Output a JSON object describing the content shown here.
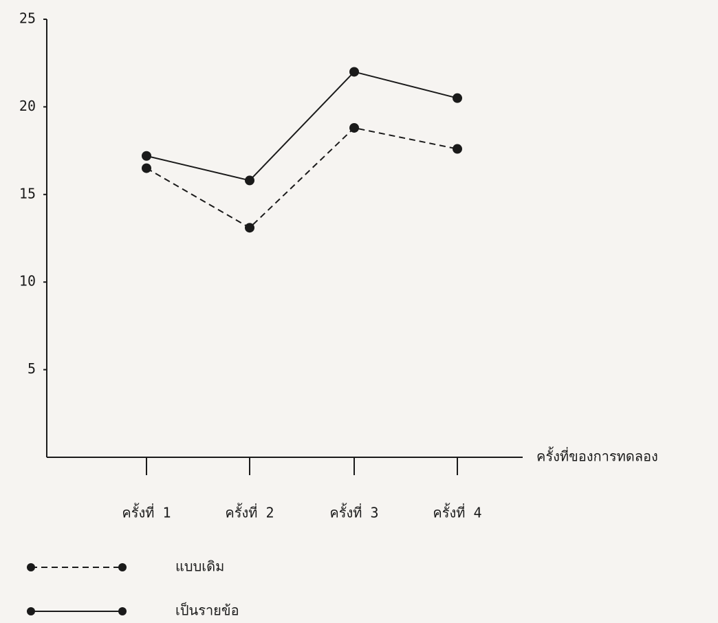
{
  "chart_data": {
    "type": "line",
    "x_label": "ครั้งที่ของการทดลอง",
    "categories": [
      "ครั้งที่ 1",
      "ครั้งที่ 2",
      "ครั้งที่ 3",
      "ครั้งที่ 4"
    ],
    "series": [
      {
        "name": "แบบเดิม",
        "color": "#1a1a1a",
        "line_style": "dashed",
        "values": [
          16.5,
          13.1,
          18.8,
          17.6
        ]
      },
      {
        "name": "เป็นรายข้อ",
        "color": "#1a1a1a",
        "line_style": "solid",
        "values": [
          17.2,
          15.8,
          22.0,
          20.5
        ]
      }
    ],
    "ylim": [
      0,
      25
    ],
    "yticks": [
      5,
      10,
      15,
      20,
      25
    ],
    "grid": false
  }
}
